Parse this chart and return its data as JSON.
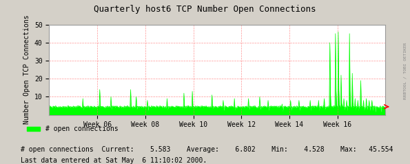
{
  "title": "Quarterly host6 TCP Number Open Connections",
  "ylabel": "Number Open TCP Connections",
  "bg_color": "#d4d0c8",
  "plot_bg_color": "#ffffff",
  "line_color": "#00ff00",
  "grid_color": "#ff6666",
  "ylim": [
    0,
    50
  ],
  "yticks": [
    10,
    20,
    30,
    40,
    50
  ],
  "xtick_labels": [
    "Week 06",
    "Week 08",
    "Week 10",
    "Week 12",
    "Week 14",
    "Week 16"
  ],
  "legend_label": "# open connections",
  "stats_text": "# open connections  Current:    5.583    Average:    6.802    Min:    4.528    Max:   45.554",
  "footer_text": "Last data entered at Sat May  6 11:10:02 2000.",
  "right_label": "RRBTOOL / TOBI OETIKER",
  "n_points": 600,
  "base_value": 4.5,
  "spike_positions": [
    60,
    90,
    110,
    145,
    155,
    175,
    210,
    240,
    255,
    290,
    310,
    330,
    355,
    375,
    390,
    415,
    430,
    445,
    465,
    480,
    490,
    500,
    510,
    515,
    520,
    525,
    530,
    535,
    540,
    545,
    550,
    555,
    560,
    565,
    570,
    575,
    580,
    590
  ],
  "spike_heights": [
    9,
    14,
    10,
    14,
    10,
    8,
    9,
    12,
    13,
    11,
    8,
    9,
    9,
    10,
    8,
    6,
    8,
    8,
    8,
    8,
    9,
    40,
    45,
    46,
    22,
    9,
    8,
    45,
    23,
    9,
    8,
    19,
    8,
    9,
    8,
    8,
    5,
    5
  ]
}
